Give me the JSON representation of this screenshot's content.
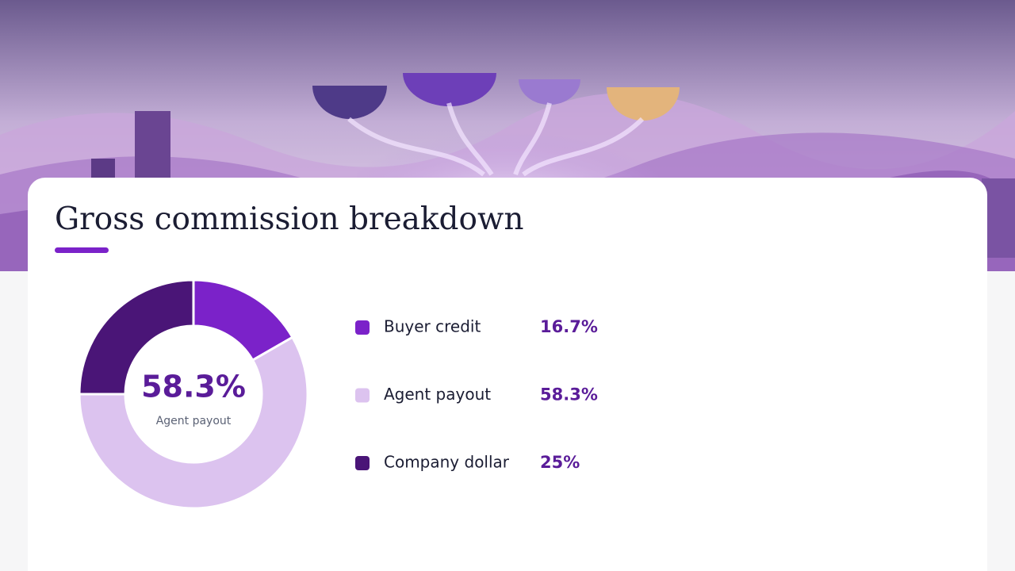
{
  "chart_data": {
    "type": "pie",
    "donut": true,
    "title": "Gross commission breakdown",
    "categories": [
      "Buyer credit",
      "Agent payout",
      "Company dollar"
    ],
    "values": [
      16.7,
      58.3,
      25
    ],
    "value_labels": [
      "16.7%",
      "58.3%",
      "25%"
    ],
    "colors": [
      "#7b22c9",
      "#dcc3ef",
      "#4a1577"
    ]
  }
}
